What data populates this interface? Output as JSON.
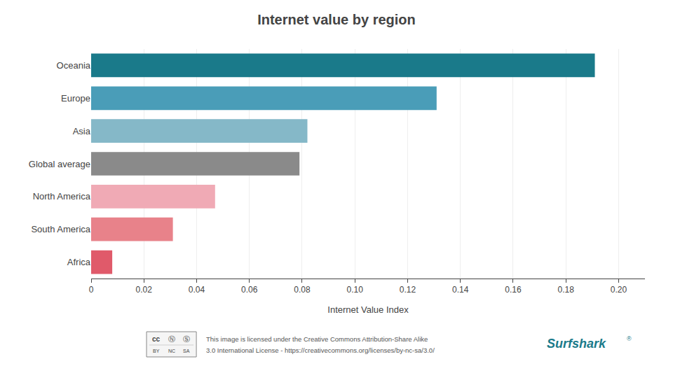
{
  "chart_data": {
    "type": "bar",
    "orientation": "horizontal",
    "title": "Internet value by region",
    "categories": [
      "Africa",
      "South America",
      "North America",
      "Global average",
      "Asia",
      "Europe",
      "Oceania"
    ],
    "values": [
      0.008,
      0.031,
      0.047,
      0.079,
      0.082,
      0.131,
      0.191
    ],
    "colors": [
      "#e05a6a",
      "#e8828a",
      "#f0aab5",
      "#8a8a8a",
      "#85b8c8",
      "#4a9db8",
      "#1a7a8a"
    ],
    "xlabel": "Internet Value Index",
    "xlim": [
      0,
      0.21
    ],
    "xticks": [
      0,
      0.02,
      0.04,
      0.06,
      0.08,
      {
        "value": 0.1,
        "label": "0.10"
      },
      0.12,
      0.14,
      0.16,
      0.18,
      {
        "value": 0.2,
        "label": "0.20"
      }
    ],
    "grid": true,
    "annotations": [
      "cc",
      "Ⓝ",
      "Ⓢ",
      "BY",
      "NC",
      "SA",
      "This image is licensed under the Creative Commons Attribution-Share Alike",
      "3.0 International License - https://creativecommons.org/licenses/by-nc-sa/3.0/",
      "Surfshark",
      "®"
    ]
  }
}
